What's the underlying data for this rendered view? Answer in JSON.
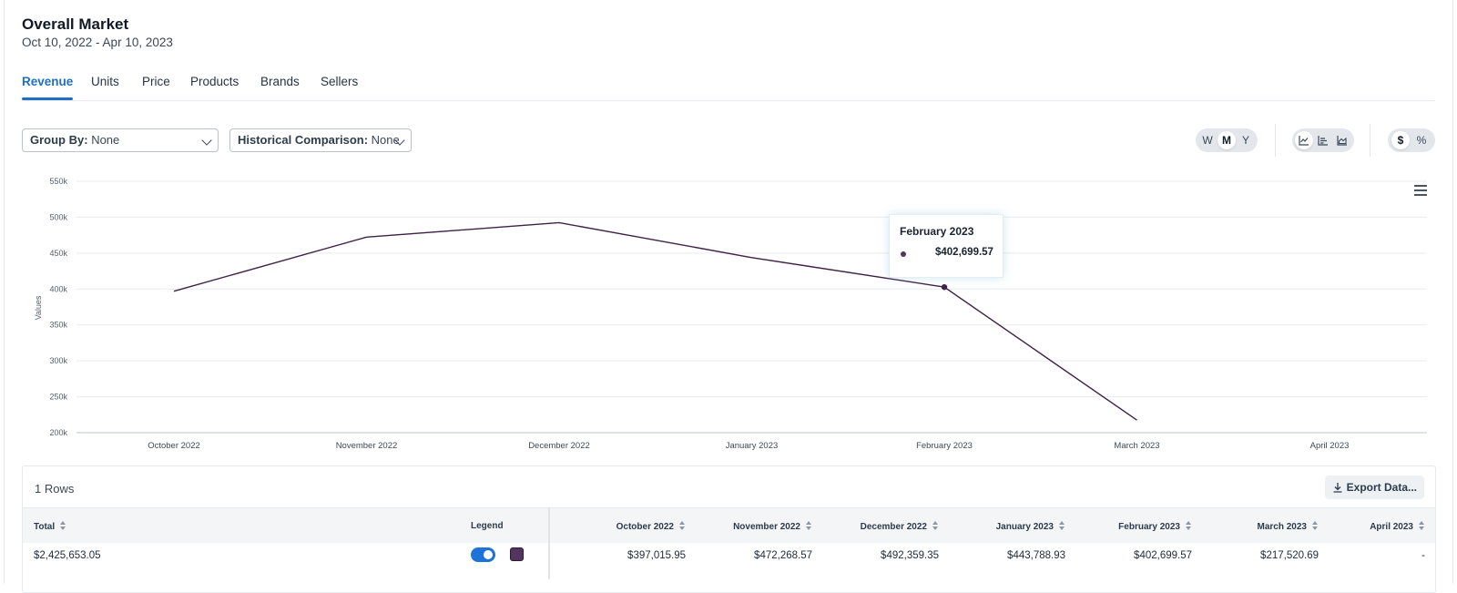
{
  "header": {
    "title": "Overall Market",
    "date_range": "Oct 10, 2022 - Apr 10, 2023"
  },
  "tabs": [
    {
      "label": "Revenue",
      "active": true
    },
    {
      "label": "Units",
      "active": false
    },
    {
      "label": "Price",
      "active": false
    },
    {
      "label": "Products",
      "active": false
    },
    {
      "label": "Brands",
      "active": false
    },
    {
      "label": "Sellers",
      "active": false
    }
  ],
  "controls": {
    "group_by": {
      "label": "Group By:",
      "value": "None"
    },
    "historical_comparison": {
      "label": "Historical Comparison:",
      "value": "None"
    },
    "interval": {
      "options": [
        "W",
        "M",
        "Y"
      ],
      "selected": "M"
    },
    "chart_types": {
      "icons": [
        "line-chart-icon",
        "bar-chart-icon",
        "area-chart-icon"
      ]
    },
    "unit": {
      "options": [
        "$",
        "%"
      ],
      "selected": "$"
    }
  },
  "chart_data": {
    "type": "line",
    "ylabel": "Values",
    "xlabel": "",
    "ylim": [
      200000,
      550000
    ],
    "yticks": [
      "550k",
      "500k",
      "450k",
      "400k",
      "350k",
      "300k",
      "250k",
      "200k"
    ],
    "ytick_values": [
      550000,
      500000,
      450000,
      400000,
      350000,
      300000,
      250000,
      200000
    ],
    "categories": [
      "October 2022",
      "November 2022",
      "December 2022",
      "January 2023",
      "February 2023",
      "March 2023",
      "April 2023"
    ],
    "series": [
      {
        "color": "#3f2148",
        "values": [
          397015.95,
          472268.57,
          492359.35,
          443788.93,
          402699.57,
          217520.69,
          null
        ]
      }
    ],
    "grid": true,
    "legend": "none"
  },
  "tooltip": {
    "title": "February 2023",
    "value": "$402,699.57"
  },
  "table": {
    "rows_label": "1 Rows",
    "export_label": "Export Data...",
    "headers": {
      "total": "Total",
      "legend": "Legend",
      "months": [
        "October 2022",
        "November 2022",
        "December 2022",
        "January 2023",
        "February 2023",
        "March 2023",
        "April 2023"
      ]
    },
    "row": {
      "total": "$2,425,653.05",
      "legend_on": true,
      "swatch_color": "#52365f",
      "values": [
        "$397,015.95",
        "$472,268.57",
        "$492,359.35",
        "$443,788.93",
        "$402,699.57",
        "$217,520.69",
        "-"
      ]
    }
  }
}
